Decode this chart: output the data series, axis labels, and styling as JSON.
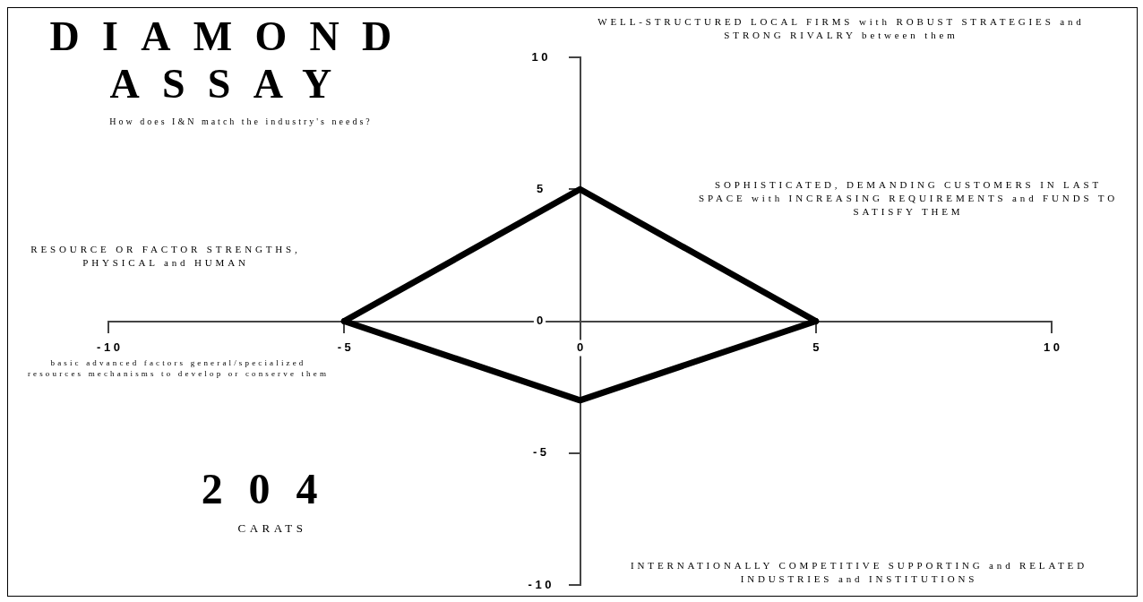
{
  "chart_data": {
    "type": "line",
    "title": "DIAMOND ASSAY",
    "subtitle": "How does I&N match the industry's needs?",
    "series": [
      {
        "x": [
          -5,
          0,
          5
        ],
        "values": [
          0,
          5,
          0
        ],
        "color": "#000000"
      },
      {
        "x": [
          -5,
          0,
          5
        ],
        "values": [
          0,
          -3,
          0
        ],
        "color": "#000000"
      }
    ],
    "xlim": [
      -10,
      10
    ],
    "xticks": [
      -10,
      -5,
      0,
      5,
      10
    ],
    "ylim": [
      -10,
      10
    ],
    "yticks": [
      -10,
      -5,
      0,
      5,
      10
    ],
    "grid": false,
    "legend": false,
    "marker": "none",
    "line_style": "solid",
    "annotations": [
      "WELL-STRUCTURED LOCAL FIRMS with ROBUST STRATEGIES and STRONG RIVALRY between them",
      "SOPHISTICATED, DEMANDING CUSTOMERS IN LAST SPACE with INCREASING REQUIREMENTS and FUNDS TO SATISFY THEM",
      "RESOURCE OR FACTOR STRENGTHS, PHYSICAL and HUMAN",
      "basic advanced factors general/specialized resources mechanisms to develop or conserve them",
      "INTERNATIONALLY COMPETITIVE SUPPORTING and RELATED INDUSTRIES and INSTITUTIONS",
      "204",
      "CARATS"
    ]
  }
}
